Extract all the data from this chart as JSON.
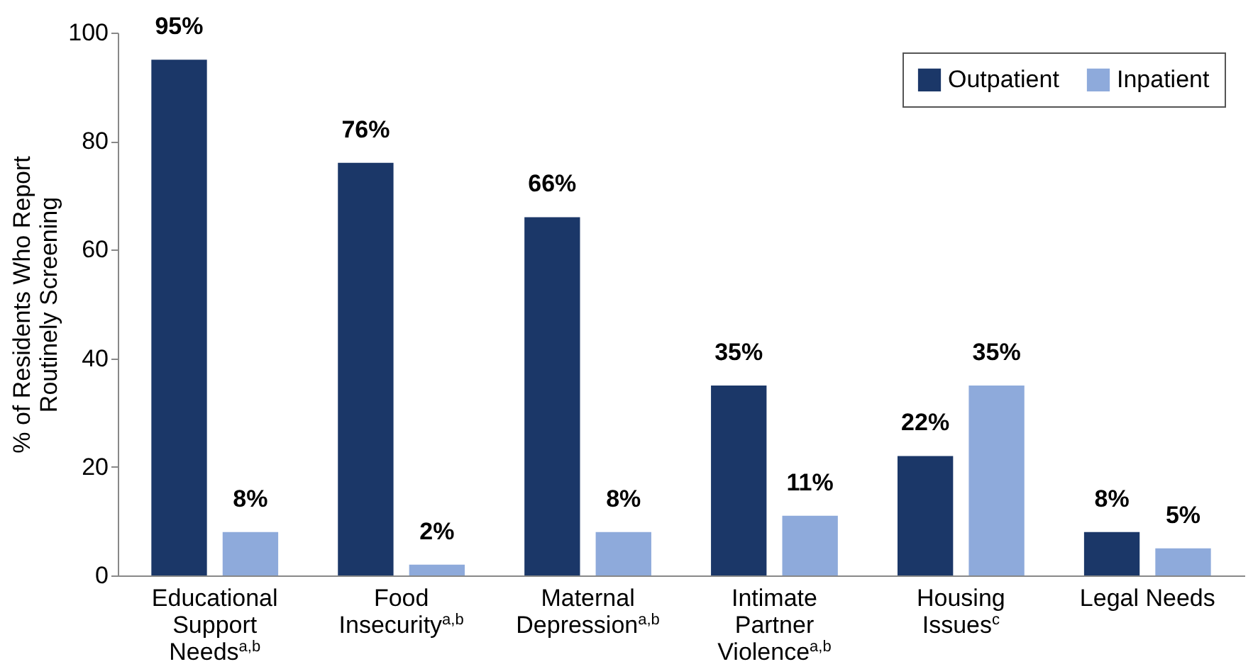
{
  "chart_data": {
    "type": "bar",
    "ylabel": "% of Residents Who Report Routinely Screening",
    "categories": [
      "Educational Support Needs$^{a,b}$",
      "Food Insecurity$^{a,b}$",
      "Maternal Depression$^{a,b}$",
      "Intimate Partner Violence$^{a,b}$",
      "Housing Issues$^{c}$",
      "Legal Needs"
    ],
    "series": [
      {
        "name": "Outpatient",
        "color": "#1b3768",
        "values": [
          95,
          76,
          66,
          35,
          22,
          8
        ],
        "value_labels": [
          "95%",
          "76%",
          "66%",
          "35%",
          "22%",
          "8%"
        ]
      },
      {
        "name": "Inpatient",
        "color": "#8eaadb",
        "values": [
          8,
          2,
          8,
          11,
          35,
          5
        ],
        "value_labels": [
          "8%",
          "2%",
          "8%",
          "11%",
          "35%",
          "5%"
        ]
      }
    ],
    "ylim": [
      0,
      100
    ],
    "yticks": [
      0,
      20,
      40,
      60,
      80,
      100
    ],
    "grid": false,
    "legend": "top right"
  }
}
